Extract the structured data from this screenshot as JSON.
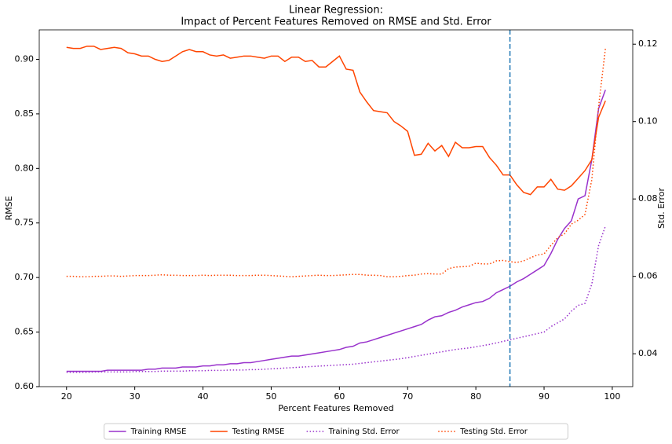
{
  "chart_data": {
    "type": "line",
    "title": "Linear Regression:",
    "subtitle": "Impact of Percent Features Removed on RMSE and Std. Error",
    "x_label": "Percent Features Removed",
    "y_label": "RMSE",
    "y2_label": "Std. Error",
    "x": [
      20,
      21,
      22,
      23,
      24,
      25,
      26,
      27,
      28,
      29,
      30,
      31,
      32,
      33,
      34,
      35,
      36,
      37,
      38,
      39,
      40,
      41,
      42,
      43,
      44,
      45,
      46,
      47,
      48,
      49,
      50,
      51,
      52,
      53,
      54,
      55,
      56,
      57,
      58,
      59,
      60,
      61,
      62,
      63,
      64,
      65,
      66,
      67,
      68,
      69,
      70,
      71,
      72,
      73,
      74,
      75,
      76,
      77,
      78,
      79,
      80,
      81,
      82,
      83,
      84,
      85,
      86,
      87,
      88,
      89,
      90,
      91,
      92,
      93,
      94,
      95,
      96,
      97,
      98,
      99
    ],
    "xlim": [
      16,
      103
    ],
    "xticks": [
      20,
      30,
      40,
      50,
      60,
      70,
      80,
      90,
      100
    ],
    "ylim": [
      0.6,
      0.927
    ],
    "yticks": [
      {
        "value": 0.6,
        "label": "0.60"
      },
      0.65,
      {
        "value": 0.7,
        "label": "0.70"
      },
      0.75,
      {
        "value": 0.8,
        "label": "0.80"
      },
      0.85,
      {
        "value": 0.9,
        "label": "0.90"
      }
    ],
    "y2lim": [
      0.0315,
      0.1237
    ],
    "y2ticks": [
      0.04,
      0.06,
      0.08,
      {
        "value": 0.1,
        "label": "0.10"
      },
      0.12
    ],
    "vline": 85,
    "vline_color": "#1f77b4",
    "legend": "lower center outside",
    "series": [
      {
        "name": "Training RMSE",
        "color": "#9932cc",
        "style": "solid",
        "values": [
          0.614,
          0.614,
          0.614,
          0.614,
          0.614,
          0.614,
          0.615,
          0.615,
          0.615,
          0.615,
          0.615,
          0.615,
          0.616,
          0.616,
          0.617,
          0.617,
          0.617,
          0.618,
          0.618,
          0.618,
          0.619,
          0.619,
          0.62,
          0.62,
          0.621,
          0.621,
          0.622,
          0.622,
          0.623,
          0.624,
          0.625,
          0.626,
          0.627,
          0.628,
          0.628,
          0.629,
          0.63,
          0.631,
          0.632,
          0.633,
          0.634,
          0.636,
          0.637,
          0.64,
          0.641,
          0.643,
          0.645,
          0.647,
          0.649,
          0.651,
          0.653,
          0.655,
          0.657,
          0.661,
          0.664,
          0.665,
          0.668,
          0.67,
          0.673,
          0.675,
          0.677,
          0.678,
          0.681,
          0.686,
          0.689,
          0.692,
          0.696,
          0.699,
          0.703,
          0.707,
          0.711,
          0.722,
          0.735,
          0.745,
          0.752,
          0.772,
          0.775,
          0.808,
          0.855,
          0.872
        ]
      },
      {
        "name": "Testing RMSE",
        "color": "#ff4500",
        "style": "solid",
        "values": [
          0.911,
          0.91,
          0.91,
          0.912,
          0.912,
          0.909,
          0.91,
          0.911,
          0.91,
          0.906,
          0.905,
          0.903,
          0.903,
          0.9,
          0.898,
          0.899,
          0.903,
          0.907,
          0.909,
          0.907,
          0.907,
          0.904,
          0.903,
          0.904,
          0.901,
          0.902,
          0.903,
          0.903,
          0.902,
          0.901,
          0.903,
          0.903,
          0.898,
          0.902,
          0.902,
          0.898,
          0.899,
          0.893,
          0.893,
          0.898,
          0.903,
          0.891,
          0.89,
          0.87,
          0.861,
          0.853,
          0.852,
          0.851,
          0.843,
          0.839,
          0.834,
          0.812,
          0.813,
          0.823,
          0.816,
          0.821,
          0.811,
          0.824,
          0.819,
          0.819,
          0.82,
          0.82,
          0.81,
          0.803,
          0.794,
          0.794,
          0.785,
          0.778,
          0.776,
          0.783,
          0.783,
          0.79,
          0.781,
          0.78,
          0.784,
          0.791,
          0.798,
          0.808,
          0.847,
          0.862
        ]
      },
      {
        "name": "Training Std. Error",
        "color": "#9932cc",
        "style": "dotted",
        "axis": "y2",
        "values": [
          0.0352,
          0.0352,
          0.0352,
          0.0352,
          0.0353,
          0.0353,
          0.0353,
          0.0353,
          0.0353,
          0.0353,
          0.0354,
          0.0354,
          0.0354,
          0.0354,
          0.0355,
          0.0355,
          0.0355,
          0.0355,
          0.0356,
          0.0356,
          0.0356,
          0.0357,
          0.0357,
          0.0357,
          0.0358,
          0.0358,
          0.0358,
          0.0359,
          0.0359,
          0.036,
          0.0361,
          0.0362,
          0.0363,
          0.0364,
          0.0365,
          0.0366,
          0.0367,
          0.0368,
          0.0369,
          0.037,
          0.0371,
          0.0372,
          0.0373,
          0.0375,
          0.0377,
          0.0379,
          0.0381,
          0.0383,
          0.0385,
          0.0387,
          0.039,
          0.0393,
          0.0396,
          0.0399,
          0.0402,
          0.0405,
          0.0408,
          0.0411,
          0.0413,
          0.0415,
          0.0418,
          0.0421,
          0.0424,
          0.0428,
          0.0432,
          0.0436,
          0.044,
          0.0444,
          0.0448,
          0.0452,
          0.0456,
          0.047,
          0.048,
          0.049,
          0.051,
          0.0525,
          0.053,
          0.058,
          0.068,
          0.073
        ]
      },
      {
        "name": "Testing Std. Error",
        "color": "#ff4500",
        "style": "dotted",
        "axis": "y2",
        "values": [
          0.06,
          0.06,
          0.0599,
          0.0599,
          0.06,
          0.06,
          0.0601,
          0.0601,
          0.06,
          0.0601,
          0.0602,
          0.0602,
          0.0602,
          0.0603,
          0.0604,
          0.0603,
          0.0603,
          0.0602,
          0.0602,
          0.0602,
          0.0603,
          0.0602,
          0.0603,
          0.0603,
          0.0603,
          0.0602,
          0.0602,
          0.0602,
          0.0603,
          0.0603,
          0.0602,
          0.0601,
          0.06,
          0.0599,
          0.06,
          0.0601,
          0.0602,
          0.0603,
          0.0602,
          0.0602,
          0.0603,
          0.0604,
          0.0605,
          0.0605,
          0.0603,
          0.0603,
          0.0602,
          0.0599,
          0.0599,
          0.06,
          0.0602,
          0.0603,
          0.0606,
          0.0607,
          0.0606,
          0.0606,
          0.062,
          0.0624,
          0.0625,
          0.0626,
          0.0634,
          0.0632,
          0.0632,
          0.064,
          0.0641,
          0.0638,
          0.0636,
          0.064,
          0.0648,
          0.0655,
          0.0658,
          0.068,
          0.07,
          0.071,
          0.0735,
          0.0745,
          0.076,
          0.085,
          0.104,
          0.119
        ]
      }
    ]
  }
}
